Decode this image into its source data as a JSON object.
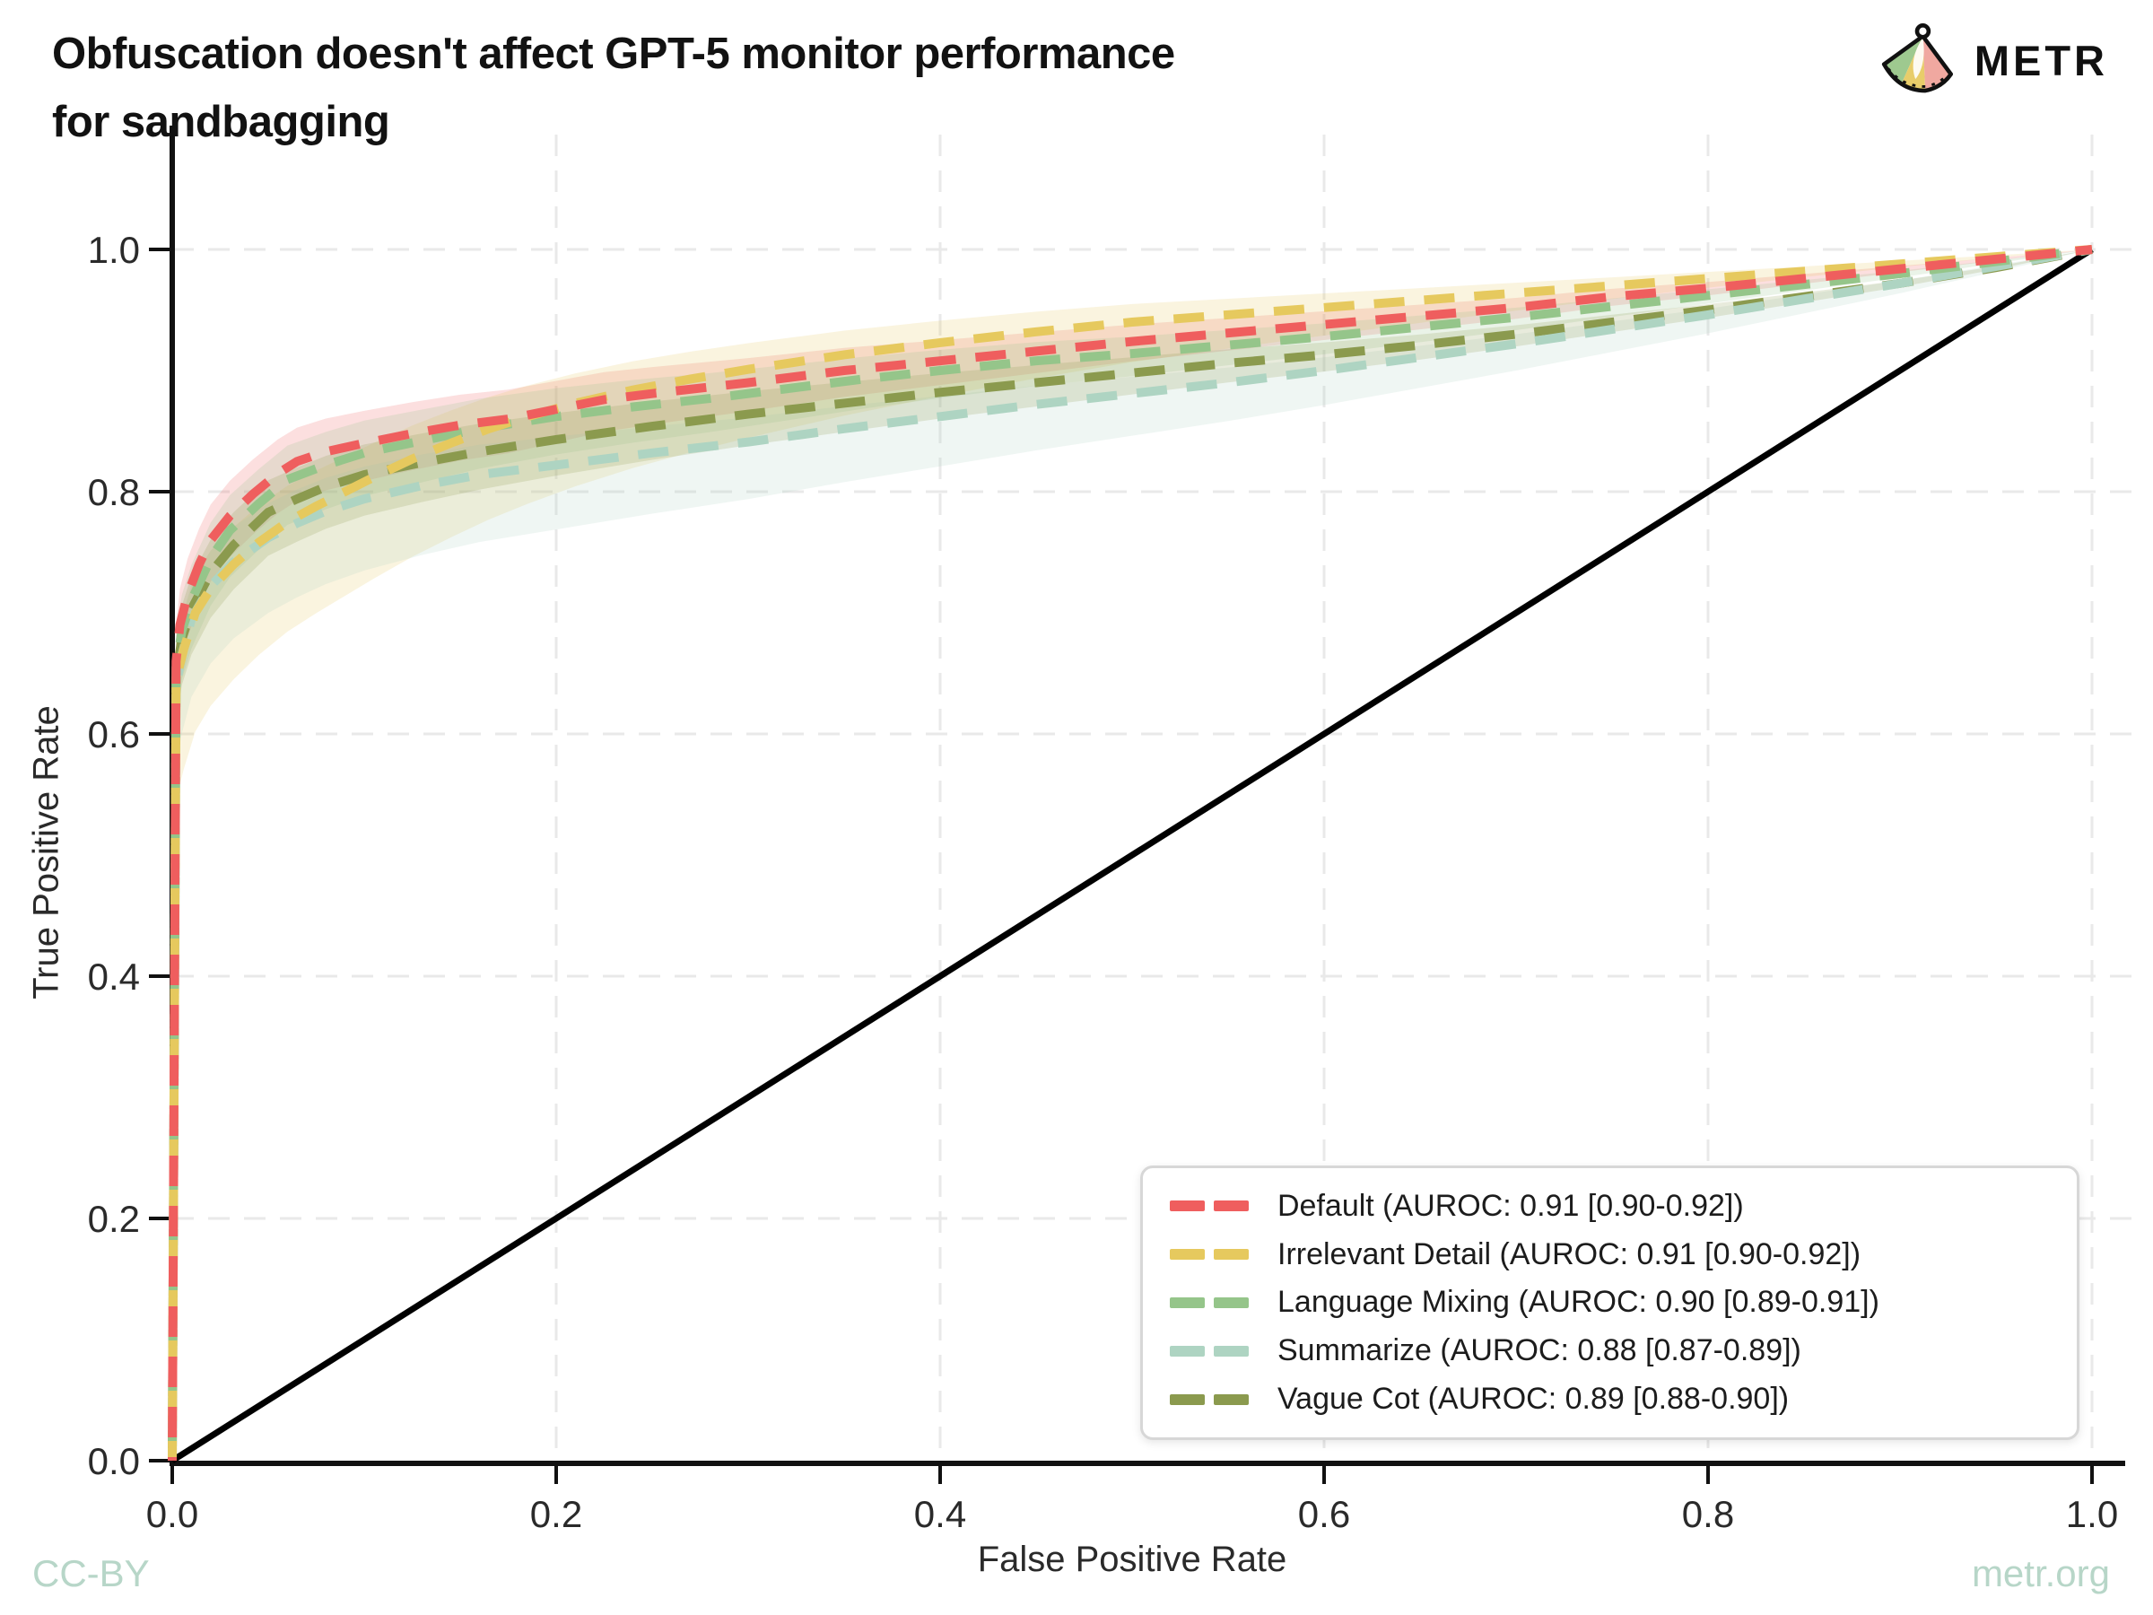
{
  "title": {
    "line1": "Obfuscation doesn't affect GPT-5 monitor performance",
    "line2": "for sandbagging"
  },
  "logo": {
    "text": "METR"
  },
  "footer": {
    "left": "CC-BY",
    "right": "metr.org",
    "color": "#b7d6c8"
  },
  "chart_data": {
    "type": "line",
    "title": "Obfuscation doesn't affect GPT-5 monitor performance for sandbagging",
    "xlabel": "False Positive Rate",
    "ylabel": "True Positive Rate",
    "xlim": [
      0,
      1
    ],
    "ylim": [
      0,
      1
    ],
    "grid": true,
    "legend_position": "lower right",
    "x_ticks": {
      "values": [
        0,
        0.2,
        0.4,
        0.6,
        0.8,
        1.0
      ],
      "labels": [
        "0.0",
        "0.2",
        "0.4",
        "0.6",
        "0.8",
        "1.0"
      ]
    },
    "y_ticks": {
      "values": [
        0,
        0.2,
        0.4,
        0.6,
        0.8,
        1.0
      ],
      "labels": [
        "0.0",
        "0.2",
        "0.4",
        "0.6",
        "0.8",
        "1.0"
      ]
    },
    "diagonal": {
      "name": "chance",
      "from": [
        0,
        0
      ],
      "to": [
        1,
        1
      ],
      "color": "#000000"
    },
    "series": [
      {
        "name": "Default",
        "auroc": 0.91,
        "ci": "[0.90-0.92]",
        "label": "Default (AUROC: 0.91 [0.90-0.92])",
        "color": "#ef5e5e",
        "band_high": 0.03,
        "band_low": 0.035,
        "points": [
          [
            0,
            0
          ],
          [
            0.002,
            0.66
          ],
          [
            0.004,
            0.69
          ],
          [
            0.008,
            0.715
          ],
          [
            0.014,
            0.74
          ],
          [
            0.02,
            0.76
          ],
          [
            0.03,
            0.78
          ],
          [
            0.042,
            0.798
          ],
          [
            0.055,
            0.815
          ],
          [
            0.065,
            0.825
          ],
          [
            0.08,
            0.833
          ],
          [
            0.1,
            0.84
          ],
          [
            0.125,
            0.848
          ],
          [
            0.15,
            0.855
          ],
          [
            0.175,
            0.86
          ],
          [
            0.2,
            0.868
          ],
          [
            0.225,
            0.876
          ],
          [
            0.25,
            0.881
          ],
          [
            0.3,
            0.89
          ],
          [
            0.35,
            0.9
          ],
          [
            0.4,
            0.908
          ],
          [
            0.45,
            0.916
          ],
          [
            0.5,
            0.924
          ],
          [
            0.55,
            0.931
          ],
          [
            0.6,
            0.938
          ],
          [
            0.65,
            0.945
          ],
          [
            0.7,
            0.952
          ],
          [
            0.75,
            0.961
          ],
          [
            0.8,
            0.968
          ],
          [
            0.85,
            0.976
          ],
          [
            0.9,
            0.984
          ],
          [
            0.95,
            0.992
          ],
          [
            1,
            1
          ]
        ]
      },
      {
        "name": "Irrelevant Detail",
        "auroc": 0.91,
        "ci": "[0.90-0.92]",
        "label": "Irrelevant Detail (AUROC: 0.91 [0.90-0.92])",
        "color": "#e6c95e",
        "band_high": 0.032,
        "band_low": 0.1,
        "low_p": 1.6,
        "points": [
          [
            0,
            0
          ],
          [
            0.002,
            0.645
          ],
          [
            0.006,
            0.67
          ],
          [
            0.012,
            0.7
          ],
          [
            0.02,
            0.72
          ],
          [
            0.032,
            0.74
          ],
          [
            0.045,
            0.758
          ],
          [
            0.06,
            0.775
          ],
          [
            0.075,
            0.788
          ],
          [
            0.09,
            0.8
          ],
          [
            0.105,
            0.812
          ],
          [
            0.125,
            0.827
          ],
          [
            0.145,
            0.84
          ],
          [
            0.165,
            0.852
          ],
          [
            0.185,
            0.862
          ],
          [
            0.21,
            0.873
          ],
          [
            0.24,
            0.884
          ],
          [
            0.27,
            0.893
          ],
          [
            0.3,
            0.901
          ],
          [
            0.35,
            0.913
          ],
          [
            0.4,
            0.923
          ],
          [
            0.45,
            0.932
          ],
          [
            0.5,
            0.94
          ],
          [
            0.55,
            0.946
          ],
          [
            0.6,
            0.952
          ],
          [
            0.65,
            0.958
          ],
          [
            0.7,
            0.964
          ],
          [
            0.75,
            0.97
          ],
          [
            0.8,
            0.976
          ],
          [
            0.85,
            0.982
          ],
          [
            0.9,
            0.988
          ],
          [
            0.95,
            0.994
          ],
          [
            1,
            1
          ]
        ]
      },
      {
        "name": "Language Mixing",
        "auroc": 0.9,
        "ci": "[0.89-0.91]",
        "label": "Language Mixing (AUROC: 0.90 [0.89-0.91])",
        "color": "#95c58a",
        "band_high": 0.03,
        "band_low": 0.04,
        "points": [
          [
            0,
            0
          ],
          [
            0.002,
            0.655
          ],
          [
            0.005,
            0.685
          ],
          [
            0.01,
            0.71
          ],
          [
            0.02,
            0.745
          ],
          [
            0.03,
            0.768
          ],
          [
            0.045,
            0.79
          ],
          [
            0.06,
            0.81
          ],
          [
            0.08,
            0.822
          ],
          [
            0.1,
            0.832
          ],
          [
            0.13,
            0.842
          ],
          [
            0.16,
            0.852
          ],
          [
            0.2,
            0.862
          ],
          [
            0.24,
            0.87
          ],
          [
            0.28,
            0.877
          ],
          [
            0.32,
            0.885
          ],
          [
            0.36,
            0.893
          ],
          [
            0.4,
            0.9
          ],
          [
            0.45,
            0.908
          ],
          [
            0.5,
            0.914
          ],
          [
            0.55,
            0.921
          ],
          [
            0.6,
            0.928
          ],
          [
            0.65,
            0.936
          ],
          [
            0.7,
            0.944
          ],
          [
            0.75,
            0.953
          ],
          [
            0.8,
            0.962
          ],
          [
            0.85,
            0.971
          ],
          [
            0.9,
            0.98
          ],
          [
            0.95,
            0.99
          ],
          [
            1,
            1
          ]
        ]
      },
      {
        "name": "Summarize",
        "auroc": 0.88,
        "ci": "[0.87-0.89]",
        "label": "Summarize (AUROC: 0.88 [0.87-0.89])",
        "color": "#aed4c2",
        "band_high": 0.03,
        "band_low": 0.065,
        "low_p": 0.9,
        "points": [
          [
            0,
            0
          ],
          [
            0.002,
            0.64
          ],
          [
            0.005,
            0.665
          ],
          [
            0.01,
            0.695
          ],
          [
            0.02,
            0.722
          ],
          [
            0.032,
            0.742
          ],
          [
            0.05,
            0.762
          ],
          [
            0.065,
            0.774
          ],
          [
            0.08,
            0.784
          ],
          [
            0.1,
            0.794
          ],
          [
            0.13,
            0.805
          ],
          [
            0.16,
            0.814
          ],
          [
            0.2,
            0.822
          ],
          [
            0.25,
            0.832
          ],
          [
            0.3,
            0.841
          ],
          [
            0.35,
            0.852
          ],
          [
            0.4,
            0.862
          ],
          [
            0.45,
            0.872
          ],
          [
            0.5,
            0.881
          ],
          [
            0.55,
            0.89
          ],
          [
            0.6,
            0.9
          ],
          [
            0.65,
            0.911
          ],
          [
            0.7,
            0.922
          ],
          [
            0.75,
            0.934
          ],
          [
            0.8,
            0.946
          ],
          [
            0.85,
            0.959
          ],
          [
            0.9,
            0.972
          ],
          [
            0.95,
            0.986
          ],
          [
            1,
            1
          ]
        ]
      },
      {
        "name": "Vague Cot",
        "auroc": 0.89,
        "ci": "[0.88-0.90]",
        "label": "Vague Cot (AUROC: 0.89 [0.88-0.90])",
        "color": "#8b9a4e",
        "band_high": 0.028,
        "band_low": 0.038,
        "points": [
          [
            0,
            0
          ],
          [
            0.002,
            0.65
          ],
          [
            0.005,
            0.678
          ],
          [
            0.01,
            0.703
          ],
          [
            0.02,
            0.733
          ],
          [
            0.032,
            0.756
          ],
          [
            0.05,
            0.783
          ],
          [
            0.065,
            0.794
          ],
          [
            0.08,
            0.804
          ],
          [
            0.1,
            0.814
          ],
          [
            0.13,
            0.824
          ],
          [
            0.16,
            0.833
          ],
          [
            0.2,
            0.843
          ],
          [
            0.25,
            0.854
          ],
          [
            0.3,
            0.864
          ],
          [
            0.35,
            0.873
          ],
          [
            0.4,
            0.882
          ],
          [
            0.45,
            0.89
          ],
          [
            0.5,
            0.898
          ],
          [
            0.55,
            0.906
          ],
          [
            0.6,
            0.913
          ],
          [
            0.65,
            0.921
          ],
          [
            0.7,
            0.93
          ],
          [
            0.75,
            0.94
          ],
          [
            0.8,
            0.95
          ],
          [
            0.85,
            0.961
          ],
          [
            0.9,
            0.972
          ],
          [
            0.95,
            0.985
          ],
          [
            1,
            1
          ]
        ]
      }
    ]
  }
}
